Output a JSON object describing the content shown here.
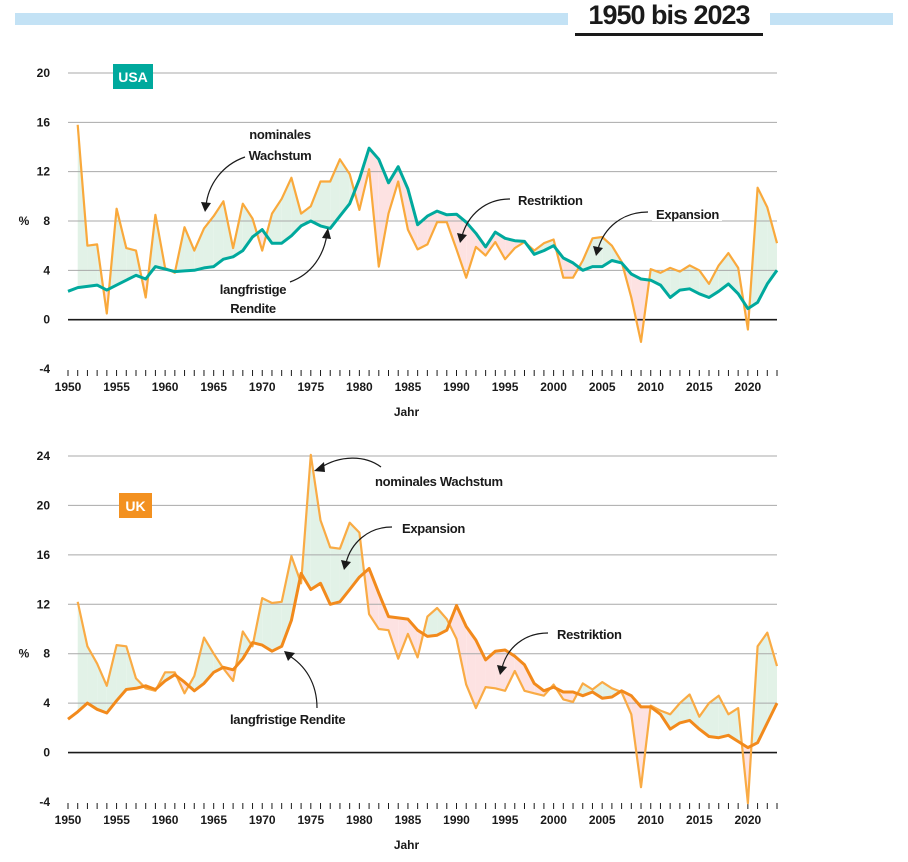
{
  "header": {
    "title": "1950 bis 2023",
    "bar_color": "#c3e2f5"
  },
  "colors": {
    "expansion_fill": "#e2f2e7",
    "restriction_fill": "#fde2e2",
    "grid": "#a9a9a9",
    "zero_line": "#1a1a1a"
  },
  "chart_data": [
    {
      "type": "line",
      "country_label": "USA",
      "badge_color": "#00a99d",
      "ylabel": "%",
      "xlabel": "Jahr",
      "ylim": [
        -4,
        20
      ],
      "yticks": [
        -4,
        0,
        4,
        8,
        12,
        16,
        20
      ],
      "xlim": [
        1950,
        2023
      ],
      "xticks": [
        1950,
        1955,
        1960,
        1965,
        1970,
        1975,
        1980,
        1985,
        1990,
        1995,
        2000,
        2005,
        2010,
        2015,
        2020
      ],
      "grid": true,
      "annotations": {
        "nominal_line1": "nominales",
        "nominal_line2": "Wachstum",
        "yield_line1": "langfristige",
        "yield_line2": "Rendite",
        "restriction": "Restriktion",
        "expansion": "Expansion"
      },
      "series": [
        {
          "key": "nominal",
          "color": "#f9a93c",
          "x": [
            1951,
            1952,
            1953,
            1954,
            1955,
            1956,
            1957,
            1958,
            1959,
            1960,
            1961,
            1962,
            1963,
            1964,
            1965,
            1966,
            1967,
            1968,
            1969,
            1970,
            1971,
            1972,
            1973,
            1974,
            1975,
            1976,
            1977,
            1978,
            1979,
            1980,
            1981,
            1982,
            1983,
            1984,
            1985,
            1986,
            1987,
            1988,
            1989,
            1990,
            1991,
            1992,
            1993,
            1994,
            1995,
            1996,
            1997,
            1998,
            1999,
            2000,
            2001,
            2002,
            2003,
            2004,
            2005,
            2006,
            2007,
            2008,
            2009,
            2010,
            2011,
            2012,
            2013,
            2014,
            2015,
            2016,
            2017,
            2018,
            2019,
            2020,
            2021,
            2022,
            2023
          ],
          "values": [
            15.8,
            6.0,
            6.1,
            0.5,
            9.0,
            5.8,
            5.6,
            1.8,
            8.5,
            4.2,
            3.8,
            7.5,
            5.6,
            7.4,
            8.4,
            9.6,
            5.8,
            9.4,
            8.2,
            5.6,
            8.6,
            9.8,
            11.5,
            8.6,
            9.2,
            11.2,
            11.2,
            13.0,
            11.8,
            8.9,
            12.2,
            4.3,
            8.6,
            11.2,
            7.3,
            5.7,
            6.1,
            7.9,
            7.9,
            5.7,
            3.4,
            5.9,
            5.2,
            6.3,
            4.9,
            5.8,
            6.3,
            5.6,
            6.2,
            6.5,
            3.4,
            3.4,
            4.8,
            6.6,
            6.7,
            6.0,
            4.7,
            1.8,
            -1.8,
            4.1,
            3.8,
            4.2,
            3.9,
            4.4,
            4.0,
            2.9,
            4.4,
            5.4,
            4.2,
            -0.8,
            10.7,
            9.1,
            6.2
          ]
        },
        {
          "key": "yield",
          "color": "#00a99d",
          "x": [
            1950,
            1951,
            1952,
            1953,
            1954,
            1955,
            1956,
            1957,
            1958,
            1959,
            1960,
            1961,
            1962,
            1963,
            1964,
            1965,
            1966,
            1967,
            1968,
            1969,
            1970,
            1971,
            1972,
            1973,
            1974,
            1975,
            1976,
            1977,
            1978,
            1979,
            1980,
            1981,
            1982,
            1983,
            1984,
            1985,
            1986,
            1987,
            1988,
            1989,
            1990,
            1991,
            1992,
            1993,
            1994,
            1995,
            1996,
            1997,
            1998,
            1999,
            2000,
            2001,
            2002,
            2003,
            2004,
            2005,
            2006,
            2007,
            2008,
            2009,
            2010,
            2011,
            2012,
            2013,
            2014,
            2015,
            2016,
            2017,
            2018,
            2019,
            2020,
            2021,
            2022,
            2023
          ],
          "values": [
            2.3,
            2.6,
            2.7,
            2.8,
            2.4,
            2.8,
            3.2,
            3.6,
            3.3,
            4.3,
            4.1,
            3.9,
            3.95,
            4.0,
            4.2,
            4.3,
            4.9,
            5.1,
            5.6,
            6.7,
            7.3,
            6.2,
            6.2,
            6.8,
            7.6,
            8.0,
            7.6,
            7.4,
            8.4,
            9.4,
            11.4,
            13.9,
            13.0,
            11.1,
            12.4,
            10.6,
            7.7,
            8.4,
            8.8,
            8.5,
            8.55,
            7.9,
            7.0,
            5.9,
            7.1,
            6.6,
            6.4,
            6.35,
            5.3,
            5.6,
            6.0,
            5.0,
            4.6,
            4.0,
            4.3,
            4.3,
            4.8,
            4.6,
            3.7,
            3.3,
            3.2,
            2.8,
            1.8,
            2.4,
            2.5,
            2.1,
            1.8,
            2.3,
            2.9,
            2.1,
            0.9,
            1.4,
            2.9,
            4.0
          ]
        }
      ]
    },
    {
      "type": "line",
      "country_label": "UK",
      "badge_color": "#f39120",
      "ylabel": "%",
      "xlabel": "Jahr",
      "ylim": [
        -4,
        24
      ],
      "yticks": [
        -4,
        0,
        4,
        8,
        12,
        16,
        20,
        24
      ],
      "xlim": [
        1950,
        2023
      ],
      "xticks": [
        1950,
        1955,
        1960,
        1965,
        1970,
        1975,
        1980,
        1985,
        1990,
        1995,
        2000,
        2005,
        2010,
        2015,
        2020
      ],
      "grid": true,
      "annotations": {
        "nominal": "nominales Wachstum",
        "expansion": "Expansion",
        "yield": "langfristige Rendite",
        "restriction": "Restriktion"
      },
      "series": [
        {
          "key": "nominal",
          "color": "#f9ab45",
          "x": [
            1951,
            1952,
            1953,
            1954,
            1955,
            1956,
            1957,
            1958,
            1959,
            1960,
            1961,
            1962,
            1963,
            1964,
            1965,
            1966,
            1967,
            1968,
            1969,
            1970,
            1971,
            1972,
            1973,
            1974,
            1975,
            1976,
            1977,
            1978,
            1979,
            1980,
            1981,
            1982,
            1983,
            1984,
            1985,
            1986,
            1987,
            1988,
            1989,
            1990,
            1991,
            1992,
            1993,
            1994,
            1995,
            1996,
            1997,
            1998,
            1999,
            2000,
            2001,
            2002,
            2003,
            2004,
            2005,
            2006,
            2007,
            2008,
            2009,
            2010,
            2011,
            2012,
            2013,
            2014,
            2015,
            2016,
            2017,
            2018,
            2019,
            2020,
            2021,
            2022,
            2023
          ],
          "values": [
            12.2,
            8.6,
            7.2,
            5.4,
            8.7,
            8.6,
            6.0,
            5.2,
            5.0,
            6.5,
            6.5,
            4.8,
            6.2,
            9.3,
            8.0,
            6.8,
            5.8,
            9.8,
            8.6,
            12.5,
            12.1,
            12.2,
            15.9,
            13.7,
            24.1,
            18.8,
            16.6,
            16.5,
            18.6,
            17.8,
            11.2,
            10.0,
            9.9,
            7.6,
            9.6,
            7.7,
            11.0,
            11.7,
            10.8,
            9.2,
            5.5,
            3.6,
            5.3,
            5.2,
            5.0,
            6.6,
            5.0,
            4.8,
            4.6,
            5.5,
            4.3,
            4.1,
            5.6,
            5.1,
            5.7,
            5.2,
            4.9,
            3.1,
            -2.8,
            3.8,
            3.4,
            3.1,
            4.0,
            4.7,
            2.9,
            4.0,
            4.6,
            3.1,
            3.6,
            -4.1,
            8.6,
            9.7,
            7.0
          ]
        },
        {
          "key": "yield",
          "color": "#f28a1c",
          "x": [
            1950,
            1951,
            1952,
            1953,
            1954,
            1955,
            1956,
            1957,
            1958,
            1959,
            1960,
            1961,
            1962,
            1963,
            1964,
            1965,
            1966,
            1967,
            1968,
            1969,
            1970,
            1971,
            1972,
            1973,
            1974,
            1975,
            1976,
            1977,
            1978,
            1979,
            1980,
            1981,
            1982,
            1983,
            1984,
            1985,
            1986,
            1987,
            1988,
            1989,
            1990,
            1991,
            1992,
            1993,
            1994,
            1995,
            1996,
            1997,
            1998,
            1999,
            2000,
            2001,
            2002,
            2003,
            2004,
            2005,
            2006,
            2007,
            2008,
            2009,
            2010,
            2011,
            2012,
            2013,
            2014,
            2015,
            2016,
            2017,
            2018,
            2019,
            2020,
            2021,
            2022,
            2023
          ],
          "values": [
            2.7,
            3.3,
            4.0,
            3.5,
            3.2,
            4.2,
            5.1,
            5.2,
            5.4,
            5.1,
            5.8,
            6.3,
            5.7,
            5.0,
            5.6,
            6.5,
            6.9,
            6.7,
            7.6,
            8.9,
            8.7,
            8.2,
            8.6,
            10.7,
            14.5,
            13.2,
            13.7,
            12.0,
            12.2,
            13.2,
            14.2,
            14.9,
            12.9,
            11.0,
            10.9,
            10.8,
            9.9,
            9.4,
            9.5,
            9.9,
            11.9,
            10.2,
            9.1,
            7.5,
            8.2,
            8.3,
            7.8,
            7.1,
            5.6,
            5.0,
            5.3,
            4.9,
            4.9,
            4.6,
            4.9,
            4.4,
            4.5,
            5.0,
            4.6,
            3.7,
            3.7,
            3.1,
            1.9,
            2.4,
            2.6,
            1.9,
            1.3,
            1.2,
            1.4,
            0.9,
            0.4,
            0.8,
            2.4,
            4.0
          ]
        }
      ]
    }
  ]
}
